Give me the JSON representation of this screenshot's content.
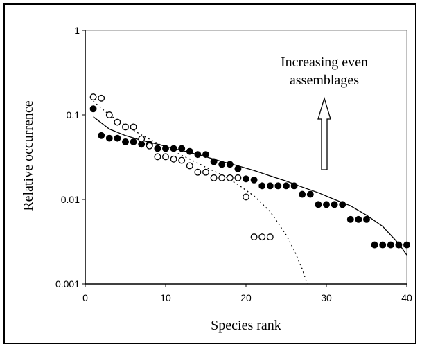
{
  "chart_data": {
    "type": "scatter",
    "title": "",
    "xlabel": "Species rank",
    "ylabel": "Relative occurrence",
    "xlim": [
      0,
      40
    ],
    "ylim": [
      0.001,
      1
    ],
    "yscale": "log",
    "grid": false,
    "x_ticks": [
      0,
      10,
      20,
      30,
      40
    ],
    "x_tick_labels": [
      "0",
      "10",
      "20",
      "30",
      "40"
    ],
    "y_ticks": [
      0.001,
      0.01,
      0.1,
      1
    ],
    "y_tick_labels": [
      "0.001",
      "0.01",
      "0.1",
      "1"
    ],
    "annotation": {
      "lines": [
        "Increasing even",
        "assemblages"
      ],
      "arrow_direction": "up"
    },
    "series": [
      {
        "marker": "filled-circle",
        "color": "#000000",
        "x": [
          1,
          2,
          3,
          4,
          5,
          6,
          7,
          8,
          9,
          10,
          11,
          12,
          13,
          14,
          15,
          16,
          17,
          18,
          19,
          20,
          21,
          22,
          23,
          24,
          25,
          26,
          27,
          28,
          29,
          30,
          31,
          32,
          33,
          34,
          35,
          36,
          37,
          38,
          39,
          40
        ],
        "y": [
          0.118,
          0.057,
          0.053,
          0.053,
          0.048,
          0.048,
          0.045,
          0.045,
          0.04,
          0.04,
          0.04,
          0.04,
          0.037,
          0.034,
          0.034,
          0.028,
          0.026,
          0.026,
          0.023,
          0.0175,
          0.017,
          0.0145,
          0.0145,
          0.0145,
          0.0145,
          0.0145,
          0.0115,
          0.0115,
          0.0087,
          0.0087,
          0.0087,
          0.0087,
          0.0058,
          0.0058,
          0.0058,
          0.0029,
          0.0029,
          0.0029,
          0.0029,
          0.0029
        ]
      },
      {
        "marker": "open-circle",
        "color": "#000000",
        "x": [
          1,
          2,
          3,
          4,
          5,
          6,
          7,
          8,
          9,
          10,
          11,
          12,
          13,
          14,
          15,
          16,
          17,
          18,
          19,
          20,
          21,
          22,
          23
        ],
        "y": [
          0.163,
          0.158,
          0.1,
          0.082,
          0.072,
          0.072,
          0.052,
          0.043,
          0.032,
          0.032,
          0.03,
          0.029,
          0.025,
          0.021,
          0.021,
          0.018,
          0.018,
          0.018,
          0.018,
          0.0107,
          0.0036,
          0.0036,
          0.0036
        ]
      }
    ],
    "fits": [
      {
        "style": "solid",
        "x": [
          1,
          3,
          5,
          7,
          9,
          11,
          13,
          15,
          17,
          19,
          21,
          23,
          25,
          27,
          29,
          31,
          33,
          35,
          37,
          39,
          40
        ],
        "y": [
          0.095,
          0.068,
          0.057,
          0.05,
          0.045,
          0.04,
          0.036,
          0.032,
          0.028,
          0.025,
          0.022,
          0.019,
          0.0165,
          0.014,
          0.012,
          0.01,
          0.0084,
          0.0065,
          0.0048,
          0.003,
          0.0022
        ]
      },
      {
        "style": "dotted",
        "x": [
          1,
          3,
          5,
          7,
          9,
          11,
          13,
          15,
          17,
          19,
          21,
          23,
          25,
          26,
          27,
          27.6
        ],
        "y": [
          0.145,
          0.1,
          0.075,
          0.058,
          0.046,
          0.037,
          0.03,
          0.024,
          0.0195,
          0.015,
          0.011,
          0.0072,
          0.0038,
          0.0025,
          0.0015,
          0.001
        ]
      }
    ]
  }
}
